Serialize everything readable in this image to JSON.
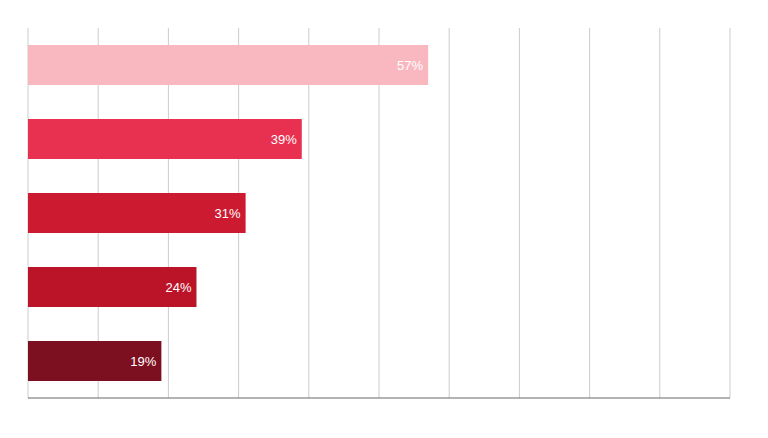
{
  "chart_data": {
    "type": "bar",
    "orientation": "horizontal",
    "values": [
      57,
      39,
      31,
      24,
      19
    ],
    "value_labels": [
      "57%",
      "39%",
      "31%",
      "24%",
      "19%"
    ],
    "data_labels": true,
    "colors": [
      "#f9b8c0",
      "#e83050",
      "#cc1a30",
      "#bb1428",
      "#7d1020"
    ],
    "xlim": [
      0,
      100
    ],
    "xticks": [
      10,
      20,
      30,
      40,
      50,
      60,
      70,
      80,
      90,
      100
    ],
    "grid": true,
    "tick_labels": false
  }
}
